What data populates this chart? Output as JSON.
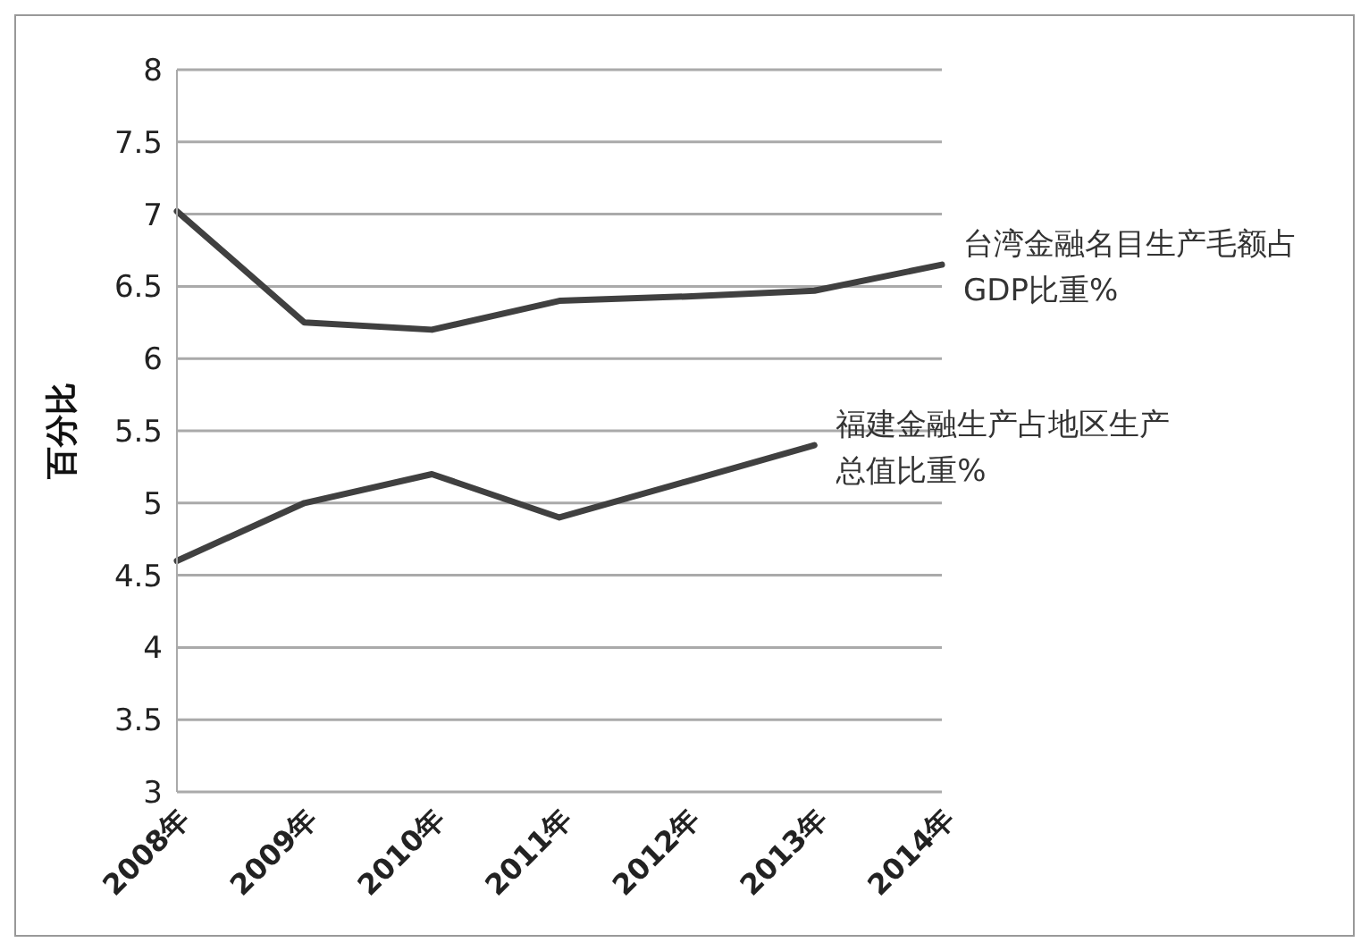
{
  "chart_data": {
    "type": "line",
    "ylabel": "百分比",
    "categories": [
      "2008年",
      "2009年",
      "2010年",
      "2011年",
      "2012年",
      "2013年",
      "2014年"
    ],
    "series": [
      {
        "name": "台湾金融名目生产毛额占GDP比重%",
        "color": "#404040",
        "values": [
          7.02,
          6.25,
          6.2,
          6.4,
          6.43,
          6.47,
          6.65
        ]
      },
      {
        "name": "福建金融生产占地区生产总值比重%",
        "color": "#404040",
        "values": [
          4.6,
          5.0,
          5.2,
          4.9,
          5.15,
          5.4,
          null
        ]
      }
    ],
    "ylim": [
      3,
      8
    ],
    "yticks": [
      3,
      3.5,
      4,
      4.5,
      5,
      5.5,
      6,
      6.5,
      7,
      7.5,
      8
    ],
    "grid": "y",
    "legend": false,
    "marker": "none",
    "line_style": "solid"
  }
}
